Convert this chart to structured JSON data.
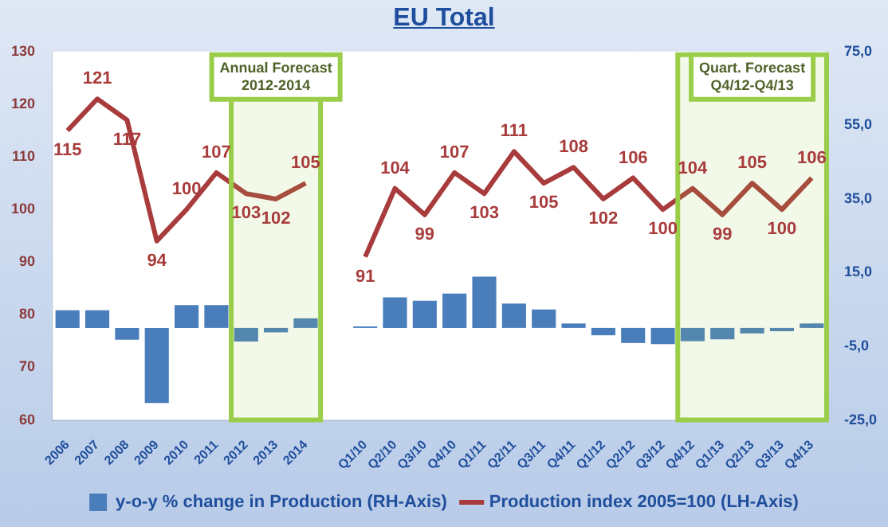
{
  "chart_data": {
    "type": "bar",
    "title": "EU Total",
    "categories": [
      "2006",
      "2007",
      "2008",
      "2009",
      "2010",
      "2011",
      "2012",
      "2013",
      "2014",
      null,
      "Q1/10",
      "Q2/10",
      "Q3/10",
      "Q4/10",
      "Q1/11",
      "Q2/11",
      "Q3/11",
      "Q4/11",
      "Q1/12",
      "Q2/12",
      "Q3/12",
      "Q4/12",
      "Q1/13",
      "Q2/13",
      "Q3/13",
      "Q4/13"
    ],
    "series": [
      {
        "name": "y-o-y % change in Production (RH-Axis)",
        "axis": "y2",
        "color": "#4a7ebb",
        "values": [
          4.8,
          4.8,
          -3.2,
          -20.4,
          6.2,
          6.2,
          -3.7,
          -1.2,
          2.6,
          null,
          0.4,
          8.3,
          7.4,
          9.3,
          13.9,
          6.6,
          5.0,
          1.2,
          -2.0,
          -4.1,
          -4.4,
          -3.6,
          -3.1,
          -1.5,
          -0.9,
          1.2
        ]
      },
      {
        "name": "Production index 2005=100 (LH-Axis)",
        "type": "line",
        "axis": "y",
        "color": "#a83c3c",
        "values": [
          115,
          121,
          117,
          94,
          100,
          107,
          103,
          102,
          105,
          null,
          91,
          104,
          99,
          107,
          103,
          111,
          105,
          108,
          102,
          106,
          100,
          104,
          99,
          105,
          100,
          106
        ],
        "value_labels": [
          "115",
          "121",
          "117",
          "94",
          "100",
          "107",
          "103",
          "102",
          "105",
          null,
          "91",
          "104",
          "99",
          "107",
          "103",
          "111",
          "105",
          "108",
          "102",
          "106",
          "100",
          "104",
          "99",
          "105",
          "100",
          "106"
        ]
      }
    ],
    "ylim": [
      60,
      130
    ],
    "yticks": [
      60,
      70,
      80,
      90,
      100,
      110,
      120,
      130
    ],
    "y2lim": [
      -25,
      75
    ],
    "y2ticks": [
      {
        "value": -25,
        "label": "-25,0"
      },
      {
        "value": -5,
        "label": "-5,0"
      },
      {
        "value": 15,
        "label": "15,0"
      },
      {
        "value": 35,
        "label": "35,0"
      },
      {
        "value": 55,
        "label": "55,0"
      },
      {
        "value": 75,
        "label": "75,0"
      }
    ],
    "bands": [
      {
        "axis": "x",
        "from": "2012",
        "to": "2014",
        "label": "Annual Forecast\n2012-2014",
        "color": "#9acd4a"
      },
      {
        "axis": "x",
        "from": "Q4/12",
        "to": "Q4/13",
        "label": "Quart. Forecast\nQ4/12-Q4/13",
        "color": "#9acd4a"
      }
    ],
    "grid": false,
    "legend": "bottom",
    "marker": "none",
    "line_style": "solid"
  }
}
